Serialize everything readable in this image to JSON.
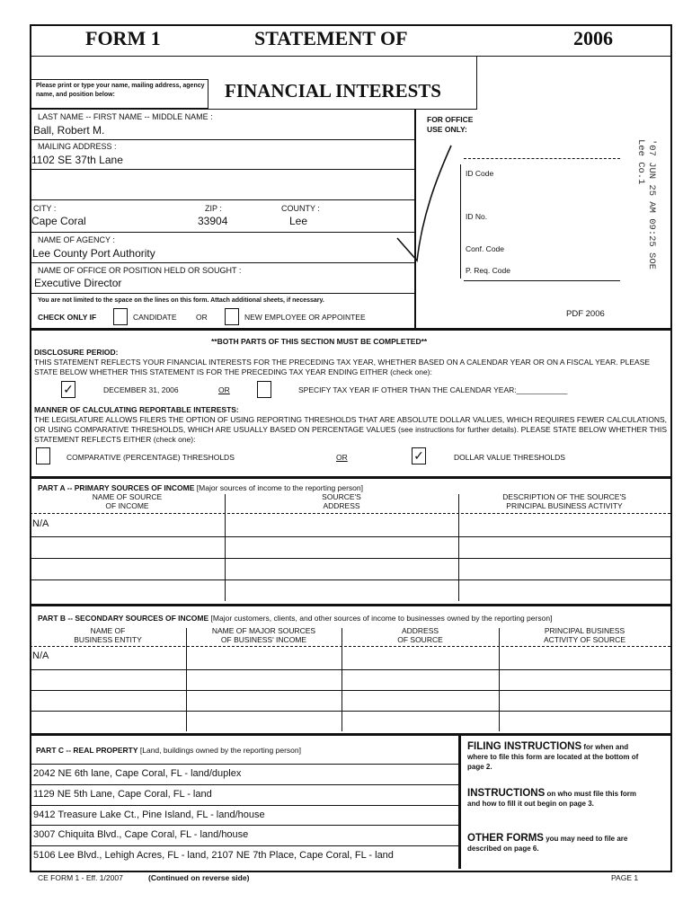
{
  "header": {
    "form": "FORM 1",
    "title1": "STATEMENT OF",
    "title2": "FINANCIAL INTERESTS",
    "year": "2006",
    "instruction": "Please print or type your name, mailing address, agency name, and position below:"
  },
  "fields": {
    "name_label": "LAST NAME -- FIRST NAME -- MIDDLE NAME :",
    "name": "Ball, Robert M.",
    "address_label": "MAILING ADDRESS :",
    "address": "1102 SE 37th Lane",
    "city_label": "CITY :",
    "city": "Cape Coral",
    "zip_label": "ZIP :",
    "zip": "33904",
    "county_label": "COUNTY :",
    "county": "Lee",
    "agency_label": "NAME OF AGENCY :",
    "agency": "Lee County Port Authority",
    "office_label": "NAME OF OFFICE OR POSITION HELD OR SOUGHT :",
    "office": "Executive Director"
  },
  "office_use": {
    "label1": "FOR OFFICE",
    "label2": "USE ONLY:",
    "id_code": "ID Code",
    "id_no": "ID No.",
    "conf_code": "Conf. Code",
    "p_req_code": "P. Req. Code",
    "stamp": "'07 JUN 25 AM 09:25 SOE Lee Co.1",
    "pdf": "PDF 2006"
  },
  "check_only": {
    "note": "You are not limited to the space on the lines on this form. Attach additional sheets, if necessary.",
    "label": "CHECK ONLY IF",
    "candidate": "CANDIDATE",
    "or": "OR",
    "new_employee": "NEW EMPLOYEE OR APPOINTEE",
    "candidate_checked": false,
    "new_employee_checked": false
  },
  "disclosure": {
    "banner": "**BOTH PARTS OF THIS SECTION MUST BE COMPLETED**",
    "period_title": "DISCLOSURE PERIOD:",
    "period_text": "THIS STATEMENT REFLECTS YOUR FINANCIAL INTERESTS FOR THE PRECEDING TAX YEAR, WHETHER BASED ON A CALENDAR YEAR OR ON A FISCAL YEAR.  PLEASE STATE BELOW WHETHER THIS STATEMENT IS FOR THE PRECEDING TAX YEAR ENDING EITHER (check one):",
    "dec31": "DECEMBER 31, 2006",
    "or": "OR",
    "specify": "SPECIFY TAX YEAR IF OTHER THAN THE CALENDAR YEAR:____________",
    "dec31_checked": "✓",
    "specify_checked": "",
    "manner_title": "MANNER OF CALCULATING REPORTABLE INTERESTS:",
    "manner_text": "THE LEGISLATURE ALLOWS FILERS THE OPTION OF USING REPORTING THRESHOLDS THAT ARE ABSOLUTE DOLLAR VALUES, WHICH REQUIRES FEWER CALCULATIONS, OR USING COMPARATIVE THRESHOLDS, WHICH ARE USUALLY BASED ON PERCENTAGE VALUES (see instructions for further details).  PLEASE STATE BELOW WHETHER THIS STATEMENT REFLECTS EITHER (check one):",
    "comparative": "COMPARATIVE (PERCENTAGE) THRESHOLDS",
    "dollar": "DOLLAR VALUE THRESHOLDS",
    "comparative_checked": "",
    "dollar_checked": "✓"
  },
  "part_a": {
    "title": "PART A -- PRIMARY SOURCES OF INCOME",
    "subtitle": "[Major sources of income to the reporting person]",
    "columns": [
      "NAME OF SOURCE\nOF INCOME",
      "SOURCE'S\nADDRESS",
      "DESCRIPTION OF THE SOURCE'S\nPRINCIPAL BUSINESS ACTIVITY"
    ],
    "rows": [
      [
        "N/A",
        "",
        ""
      ],
      [
        "",
        "",
        ""
      ],
      [
        "",
        "",
        ""
      ],
      [
        "",
        "",
        ""
      ]
    ]
  },
  "part_b": {
    "title": "PART B -- SECONDARY SOURCES OF INCOME",
    "subtitle": "[Major customers, clients, and other sources of income to businesses owned by the reporting person]",
    "columns": [
      "NAME OF\nBUSINESS ENTITY",
      "NAME OF MAJOR SOURCES\nOF BUSINESS' INCOME",
      "ADDRESS\nOF SOURCE",
      "PRINCIPAL BUSINESS\nACTIVITY OF SOURCE"
    ],
    "rows": [
      [
        "N/A",
        "",
        "",
        ""
      ],
      [
        "",
        "",
        "",
        ""
      ],
      [
        "",
        "",
        "",
        ""
      ],
      [
        "",
        "",
        "",
        ""
      ]
    ]
  },
  "part_c": {
    "title": "PART C -- REAL PROPERTY",
    "subtitle": "[Land, buildings owned by the reporting person]",
    "rows": [
      "2042 NE 6th lane, Cape Coral, FL - land/duplex",
      "1129 NE 5th Lane, Cape Coral, FL - land",
      "9412 Treasure Lake Ct., Pine Island, FL - land/house",
      "3007 Chiquita Blvd., Cape Coral, FL - land/house",
      "5106 Lee Blvd., Lehigh Acres, FL - land,  2107 NE 7th Place, Cape Coral, FL - land"
    ]
  },
  "instructions": {
    "filing_head": "FILING INSTRUCTIONS",
    "filing_text": " for when and where to file this form are located at the bottom of page 2.",
    "instr_head": "INSTRUCTIONS",
    "instr_text": " on who must file this form and how to fill it out begin on page 3.",
    "other_head": "OTHER FORMS",
    "other_text": " you may need to file are described on page 6."
  },
  "footer": {
    "form_id": "CE FORM 1 - Eff. 1/2007",
    "continued": "(Continued on reverse side)",
    "page": "PAGE 1"
  }
}
